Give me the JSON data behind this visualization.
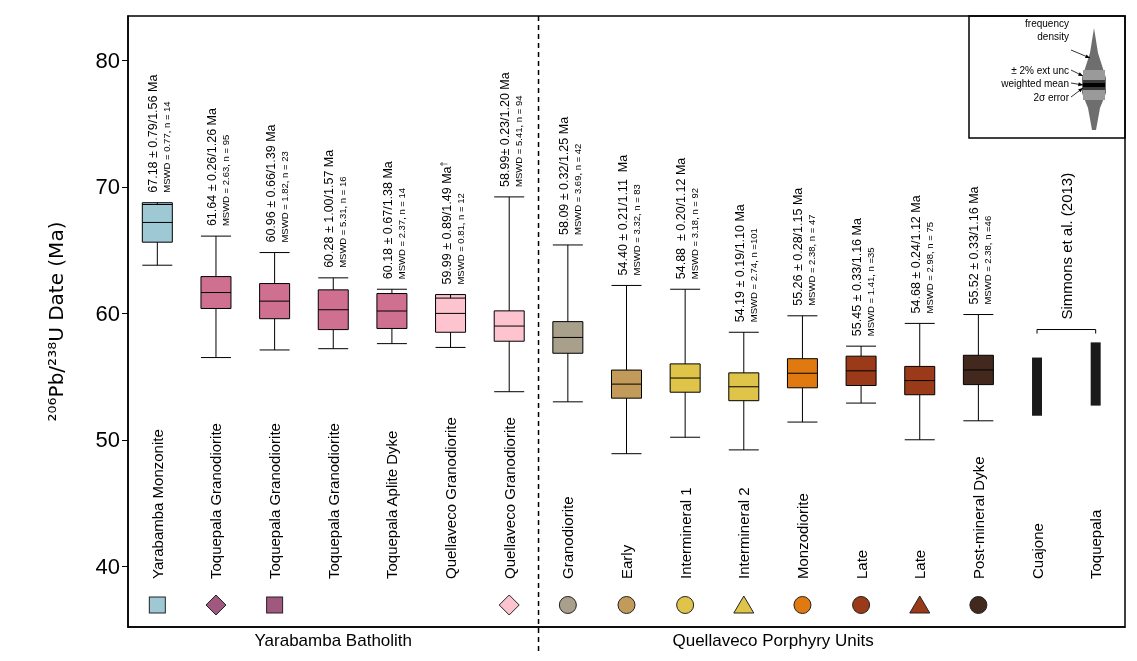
{
  "chart_data": {
    "type": "box",
    "ylabel": "²⁰⁶Pb/²³⁸U Date (Ma)",
    "categories": [
      "Yarabamba Monzonite",
      "Toquepala Granodiorite",
      "Toquepala Granodiorite",
      "Toquepala Granodiorite",
      "Toquepala Aplite Dyke",
      "Quellaveco Granodiorite",
      "Quellaveco Granodiorite",
      "Granodiorite",
      "Early",
      "Intermineral 1",
      "Intermineral 2",
      "Monzodiorite",
      "Late",
      "Late",
      "Post-mineral Dyke",
      "Cuajone",
      "Toquepala"
    ],
    "ylim": [
      35.2,
      83.5
    ],
    "yticks": [
      40,
      50,
      60,
      70,
      80
    ],
    "series": [
      {
        "type": "box",
        "colors": [
          "#9ec9d4",
          "#d07090",
          "#d07090",
          "#d07090",
          "#d07090",
          "#fdc3cf",
          "#fdc3cf",
          "#a8a08a",
          "#c29b5a",
          "#e0c44a",
          "#e0c44a",
          "#e07a10",
          "#9a3a18",
          "#9a3a18",
          "#43291d",
          null,
          null
        ],
        "boxes": [
          {
            "low": 63.8,
            "q1": 65.62,
            "median": 67.18,
            "q3": 68.74,
            "high": 68.6
          },
          {
            "low": 56.5,
            "q1": 60.38,
            "median": 61.64,
            "q3": 62.9,
            "high": 66.1
          },
          {
            "low": 57.1,
            "q1": 59.57,
            "median": 60.96,
            "q3": 62.35,
            "high": 64.8
          },
          {
            "low": 57.2,
            "q1": 58.71,
            "median": 60.28,
            "q3": 61.85,
            "high": 62.8
          },
          {
            "low": 57.6,
            "q1": 58.8,
            "median": 60.18,
            "q3": 61.56,
            "high": 61.9
          },
          {
            "low": 57.3,
            "q1": 58.5,
            "median": 59.99,
            "q3": 61.48,
            "high": 61.2
          },
          {
            "low": 53.8,
            "q1": 57.79,
            "median": 58.99,
            "q3": 60.19,
            "high": 69.2
          },
          {
            "low": 53.0,
            "q1": 56.84,
            "median": 58.09,
            "q3": 59.34,
            "high": 65.4
          },
          {
            "low": 48.9,
            "q1": 53.29,
            "median": 54.4,
            "q3": 55.51,
            "high": 62.2
          },
          {
            "low": 50.2,
            "q1": 53.76,
            "median": 54.88,
            "q3": 56.0,
            "high": 61.9
          },
          {
            "low": 49.2,
            "q1": 53.09,
            "median": 54.19,
            "q3": 55.29,
            "high": 58.5
          },
          {
            "low": 51.4,
            "q1": 54.11,
            "median": 55.26,
            "q3": 56.41,
            "high": 59.8
          },
          {
            "low": 52.9,
            "q1": 54.29,
            "median": 55.45,
            "q3": 56.61,
            "high": 57.4
          },
          {
            "low": 50.0,
            "q1": 53.56,
            "median": 54.68,
            "q3": 55.8,
            "high": 59.2
          },
          {
            "low": 51.5,
            "q1": 54.36,
            "median": 55.52,
            "q3": 56.68,
            "high": 59.9
          },
          null,
          null
        ],
        "value_labels": [
          "67.18 ± 0.79/1.56 Ma\nMSWD = 0.77, n = 14",
          "61.64 ± 0.26/1.26 Ma\nMSWD = 2.63, n = 95",
          "60.96 ± 0.66/1.39 Ma\nMSWD = 1.82, n = 23",
          "60.28 ± 1.00/1.57 Ma\nMSWD = 5.31, n = 16",
          "60.18 ± 0.67/1.38 Ma\nMSWD = 2.37, n = 14",
          "59.99 ± 0.89/1.49 Ma$^{†}$\nMSWD = 0.81, n = 12",
          "58.99± 0.23/1.20 Ma\nMSWD = 5.41, n = 94",
          "58.09 ± 0.32/1.25 Ma\nMSWD = 3.69, n = 42",
          "54.40 ± 0.21/1.11  Ma\nMSWD = 3.32, n = 83",
          "54.88  ± 0.20/1.12 Ma\nMSWD = 3.18, n = 92",
          "54.19 ± 0.19/1.10 Ma\nMSWD = 2.74, n =101",
          "55.26 ± 0.28/1.15 Ma\nMSWD = 2.38, n = 47",
          "55.45 ± 0.33/1.16 Ma\nMSWD = 1.41, n =35",
          "54.68 ± 0.24/1.12 Ma\nMSWD = 2.98, n = 75",
          "55.52 ± 0.33/1.16 Ma\nMSWD = 2.38, n =46",
          null,
          null
        ]
      },
      {
        "type": "bar",
        "color": "#1a1a1a",
        "base": [
          null,
          null,
          null,
          null,
          null,
          null,
          null,
          null,
          null,
          null,
          null,
          null,
          null,
          null,
          null,
          51.9,
          52.7
        ],
        "values": [
          null,
          null,
          null,
          null,
          null,
          null,
          null,
          null,
          null,
          null,
          null,
          null,
          null,
          null,
          null,
          4.6,
          5.0
        ]
      }
    ],
    "annotations": [
      "Yarabamba Batholith",
      "Quellaveco Porphyry Units",
      "Simmons et al. (2013)",
      "frequency density",
      "± 2% ext unc",
      "weighted mean",
      "2σ error"
    ],
    "grid": false
  }
}
